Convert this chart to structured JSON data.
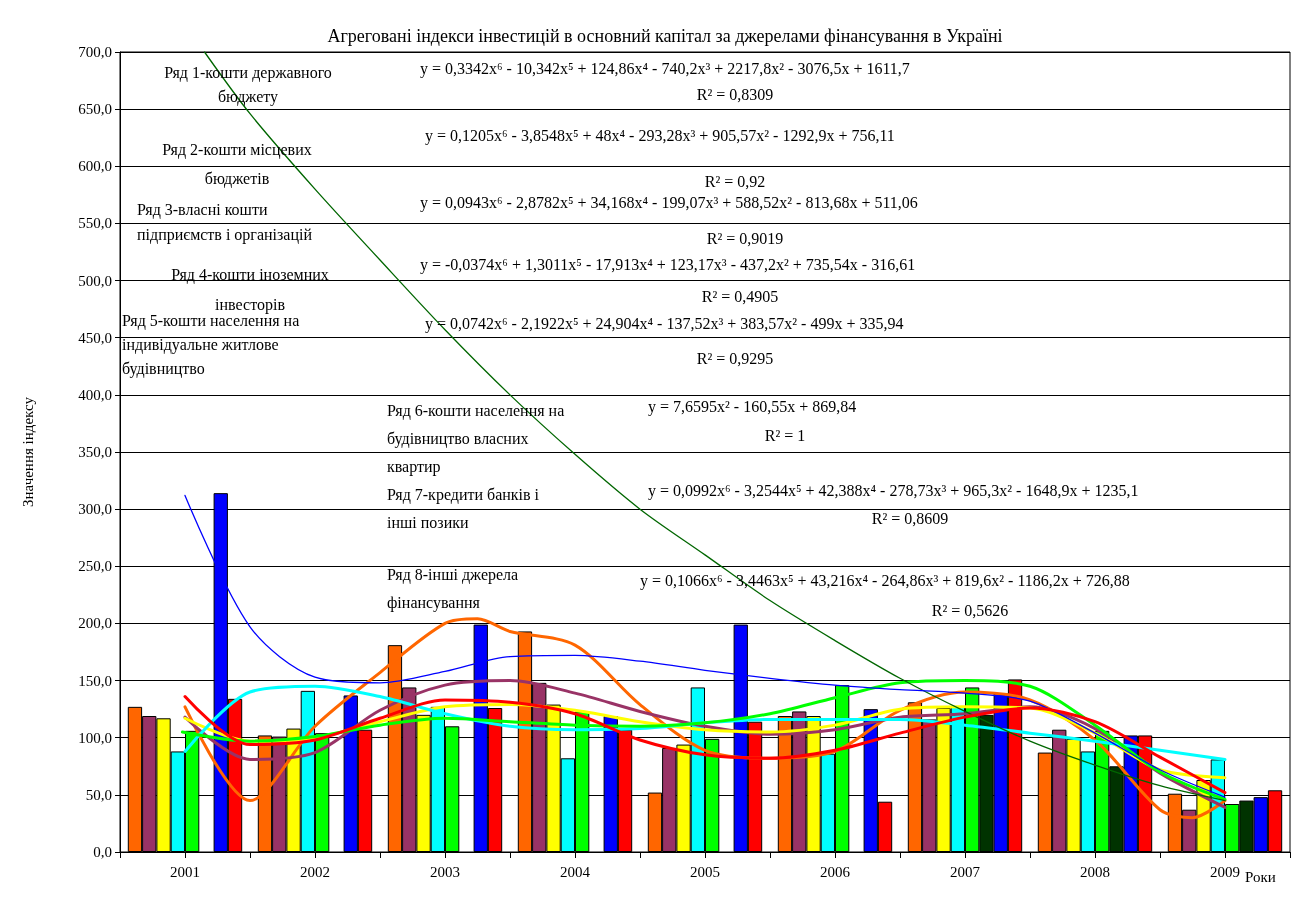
{
  "chart_data": {
    "type": "bar",
    "title": "Агреговані індекси інвестицій в основний капітал за джерелами фінансування в Україні",
    "xlabel": "Роки",
    "ylabel": "Значення індексу",
    "x": [
      2001,
      2002,
      2003,
      2004,
      2005,
      2006,
      2007,
      2008,
      2009
    ],
    "xlim": [
      2000.5,
      2009.5
    ],
    "xticks": [
      {
        "value": 2000.5,
        "label": null
      },
      2001,
      {
        "value": 2001.5,
        "label": null
      },
      2002,
      {
        "value": 2002.5,
        "label": null
      },
      2003,
      {
        "value": 2003.5,
        "label": null
      },
      2004,
      {
        "value": 2004.5,
        "label": null
      },
      2005,
      {
        "value": 2005.5,
        "label": null
      },
      2006,
      {
        "value": 2006.5,
        "label": null
      },
      2007,
      {
        "value": 2007.5,
        "label": null
      },
      2008,
      {
        "value": 2008.5,
        "label": null
      },
      2009,
      {
        "value": 2009.5,
        "label": null
      }
    ],
    "ylim": [
      0,
      700
    ],
    "yticks": [
      {
        "value": 0,
        "label": "0,0"
      },
      {
        "value": 50,
        "label": "50,0"
      },
      {
        "value": 100,
        "label": "100,0"
      },
      {
        "value": 150,
        "label": "150,0"
      },
      {
        "value": 200,
        "label": "200,0"
      },
      {
        "value": 250,
        "label": "250,0"
      },
      {
        "value": 300,
        "label": "300,0"
      },
      {
        "value": 350,
        "label": "350,0"
      },
      {
        "value": 400,
        "label": "400,0"
      },
      {
        "value": 450,
        "label": "450,0"
      },
      {
        "value": 500,
        "label": "500,0"
      },
      {
        "value": 550,
        "label": "550,0"
      },
      {
        "value": 600,
        "label": "600,0"
      },
      {
        "value": 650,
        "label": "650,0"
      },
      {
        "value": 700,
        "label": "700,0"
      }
    ],
    "grid": "y",
    "series": [
      {
        "color": "#ff6600",
        "values": [
          127,
          102,
          181,
          193,
          52,
          119,
          131,
          87,
          51
        ]
      },
      {
        "color": "#993366",
        "values": [
          119,
          101,
          144,
          148,
          91,
          123,
          116,
          107,
          37
        ]
      },
      {
        "color": "#ffff00",
        "values": [
          117,
          108,
          120,
          129,
          94,
          119,
          126,
          99,
          63
        ]
      },
      {
        "color": "#00ffff",
        "values": [
          88,
          141,
          127,
          82,
          144,
          86,
          127,
          88,
          81
        ]
      },
      {
        "color": "#00ff00",
        "values": [
          106,
          104,
          110,
          123,
          99,
          146,
          144,
          106,
          42
        ]
      },
      {
        "color": "#003300",
        "values": [
          null,
          null,
          null,
          null,
          null,
          null,
          120,
          75,
          45
        ]
      },
      {
        "color": "#0000ff",
        "values": [
          314,
          137,
          199,
          119,
          199,
          125,
          139,
          102,
          48
        ]
      },
      {
        "color": "#ff0000",
        "values": [
          134,
          107,
          126,
          107,
          114,
          44,
          151,
          102,
          54
        ]
      },
      {
        "type": "line",
        "color": "#ff6600",
        "x": [
          2001,
          2001.5,
          2002,
          2002.5,
          2003,
          2003.25,
          2003.5,
          2004,
          2004.5,
          2005,
          2005.5,
          2006,
          2006.5,
          2007,
          2007.5,
          2008,
          2008.5,
          2008.75,
          2009
        ],
        "values": [
          127,
          45,
          110,
          157,
          200,
          204,
          193,
          181,
          129,
          89,
          82,
          88,
          124,
          140,
          133,
          98,
          37,
          30,
          45
        ]
      },
      {
        "type": "line",
        "color": "#993366",
        "x": [
          2001,
          2001.5,
          2002,
          2002.5,
          2003,
          2003.5,
          2004,
          2004.5,
          2005,
          2005.5,
          2006,
          2006.5,
          2007,
          2007.5,
          2008,
          2008.5,
          2009
        ],
        "values": [
          118,
          81,
          87,
          124,
          146,
          150,
          139,
          123,
          110,
          103,
          107,
          118,
          121,
          127,
          108,
          69,
          39
        ]
      },
      {
        "type": "line",
        "color": "#ffff00",
        "x": [
          2001,
          2001.5,
          2002,
          2002.5,
          2003,
          2003.5,
          2004,
          2004.5,
          2005,
          2005.5,
          2006,
          2006.5,
          2007,
          2007.5,
          2008,
          2008.5,
          2009
        ],
        "values": [
          117,
          97,
          100,
          114,
          127,
          129,
          124,
          114,
          107,
          105,
          111,
          125,
          127,
          126,
          104,
          72,
          65
        ]
      },
      {
        "type": "line",
        "color": "#00ffff",
        "x": [
          2001,
          2001.5,
          2002,
          2002.5,
          2003,
          2003.5,
          2004,
          2004.5,
          2005,
          2005.5,
          2006,
          2006.5,
          2007,
          2007.5,
          2008,
          2008.5,
          2009
        ],
        "values": [
          88,
          140,
          145,
          136,
          121,
          110,
          107,
          108,
          113,
          116,
          116,
          116,
          111,
          104,
          97,
          89,
          81
        ]
      },
      {
        "type": "line",
        "color": "#00ff00",
        "x": [
          2000.98,
          2001.5,
          2002,
          2002.5,
          2003,
          2003.5,
          2004,
          2004.5,
          2005,
          2005.5,
          2006,
          2006.5,
          2007,
          2007.5,
          2008,
          2008.5,
          2009
        ],
        "values": [
          105,
          97,
          101,
          111,
          117,
          114,
          111,
          110,
          113,
          121,
          135,
          148,
          150,
          145,
          111,
          70,
          46
        ]
      },
      {
        "type": "line",
        "color": "#006600",
        "x": [
          2001.15,
          2001.5,
          2002,
          2002.5,
          2003,
          2003.5,
          2004,
          2004.5,
          2005,
          2005.5,
          2006,
          2006.5,
          2007,
          2007.5,
          2008,
          2008.5,
          2009
        ],
        "values": [
          700,
          646,
          580,
          518,
          457,
          400,
          348,
          300,
          260,
          220,
          185,
          152,
          123,
          97,
          76,
          58,
          45
        ]
      },
      {
        "type": "line",
        "color": "#0000ff",
        "x": [
          2001,
          2001.5,
          2002,
          2002.5,
          2003,
          2003.5,
          2004,
          2004.5,
          2005,
          2005.5,
          2006,
          2006.5,
          2007,
          2007.5,
          2008,
          2008.5,
          2009
        ],
        "values": [
          312,
          197,
          153,
          148,
          158,
          171,
          172,
          167,
          159,
          152,
          146,
          142,
          139,
          132,
          104,
          72,
          48
        ]
      },
      {
        "type": "line",
        "color": "#ff0000",
        "x": [
          2001,
          2001.5,
          2002,
          2002.5,
          2003,
          2003.5,
          2004,
          2004.5,
          2005,
          2005.5,
          2006,
          2006.5,
          2007,
          2007.5,
          2008,
          2008.5,
          2009
        ],
        "values": [
          136,
          94,
          98,
          117,
          133,
          131,
          121,
          98,
          85,
          82,
          89,
          104,
          118,
          126,
          114,
          83,
          52
        ]
      }
    ],
    "annotations": [
      "Ряд 1-кошти державного\nбюджету",
      "y = 0,3342x⁶ - 10,342x⁵ + 124,86x⁴ - 740,2x³ + 2217,8x² - 3076,5x + 1611,7",
      "R² = 0,8309",
      "Ряд 2-кошти місцевих\nбюджетів",
      "y = 0,1205x⁶ - 3,8548x⁵ + 48x⁴ - 293,28x³ + 905,57x² - 1292,9x + 756,11",
      "R² = 0,92",
      "Ряд 3-власні кошти\nпідприємств і організацій",
      "y = 0,0943x⁶ - 2,8782x⁵ + 34,168x⁴ - 199,07x³ + 588,52x² - 813,68x + 511,06",
      "R² = 0,9019",
      "Ряд 4-кошти іноземних\nінвесторів",
      "y = -0,0374x⁶ + 1,3011x⁵ - 17,913x⁴ + 123,17x³ - 437,2x² + 735,54x - 316,61",
      "R² = 0,4905",
      "Ряд 5-кошти населення на\nіндивідуальне житлове\nбудівництво",
      "y = 0,0742x⁶ - 2,1922x⁵ + 24,904x⁴ - 137,52x³ + 383,57x² - 499x + 335,94",
      "R² = 0,9295",
      "Ряд 6-кошти населення на\nбудівництво власних\nквартир",
      "y = 7,6595x² - 160,55x + 869,84",
      "R² = 1",
      "Ряд 7-кредити банків і\nінші позики",
      "y = 0,0992x⁶ - 3,2544x⁵ + 42,388x⁴ - 278,73x³ + 965,3x² - 1648,9x + 1235,1",
      "R² = 0,8609",
      "Ряд 8-інші джерела\nфінансування",
      "y = 0,1066x⁶ - 3,4463x⁵ + 43,216x⁴ - 264,86x³ + 819,6x² - 1186,2x + 726,88",
      "R² = 0,5626"
    ]
  }
}
